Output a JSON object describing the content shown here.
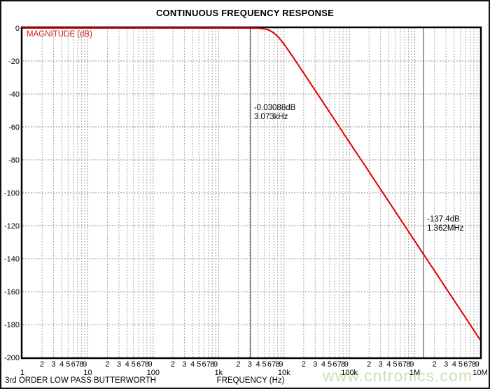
{
  "title": "CONTINUOUS FREQUENCY RESPONSE",
  "footer_left": "3rd ORDER LOW PASS BUTTERWORTH",
  "watermark": "www.cntronics.com",
  "chart_data": {
    "type": "line",
    "title": "CONTINUOUS FREQUENCY RESPONSE",
    "xlabel": "FREQUENCY (Hz)",
    "ylabel": "MAGNITUDE (dB)",
    "x_scale": "log",
    "xlim": [
      1,
      10000000
    ],
    "ylim": [
      -200,
      0
    ],
    "grid": "dashed, vertical minor log lines + horizontal lines every 20 dB",
    "x_decade_labels": [
      "1",
      "10",
      "100",
      "1k",
      "10k",
      "100k",
      "1M",
      "10M"
    ],
    "x_minor_digits": [
      "2",
      "3",
      "4",
      "5",
      "6",
      "7",
      "8",
      "9"
    ],
    "y_ticks": [
      0,
      -20,
      -40,
      -60,
      -80,
      -100,
      -120,
      -140,
      -160,
      -180,
      -200
    ],
    "filter": {
      "description": "3rd order low pass Butterworth",
      "order": 3,
      "cutoff_hz": 7005,
      "slope_db_per_decade": -60
    },
    "series": [
      {
        "name": "MAGNITUDE (dB)",
        "color": "#dd0000",
        "points": [
          [
            1,
            0
          ],
          [
            10,
            0
          ],
          [
            100,
            0
          ],
          [
            300,
            0
          ],
          [
            1000,
            -4e-05
          ],
          [
            1500,
            -0.0004
          ],
          [
            2000,
            -0.0024
          ],
          [
            2500,
            -0.009
          ],
          [
            3000,
            -0.0267
          ],
          [
            3073,
            -0.0309
          ],
          [
            3500,
            -0.0669
          ],
          [
            4000,
            -0.148
          ],
          [
            4500,
            -0.296
          ],
          [
            5000,
            -0.54
          ],
          [
            5500,
            -0.91
          ],
          [
            6000,
            -1.45
          ],
          [
            6500,
            -2.15
          ],
          [
            7005,
            -3.01
          ],
          [
            7500,
            -3.98
          ],
          [
            8000,
            -5.08
          ],
          [
            9000,
            -7.41
          ],
          [
            10000,
            -9.76
          ],
          [
            12000,
            -14.2
          ],
          [
            15000,
            -19.9
          ],
          [
            20000,
            -27.3
          ],
          [
            30000,
            -37.9
          ],
          [
            50000,
            -51.2
          ],
          [
            70000,
            -60.0
          ],
          [
            100000,
            -69.3
          ],
          [
            150000,
            -79.8
          ],
          [
            200000,
            -87.3
          ],
          [
            300000,
            -97.9
          ],
          [
            500000,
            -111.2
          ],
          [
            700000,
            -120.0
          ],
          [
            1000000,
            -129.3
          ],
          [
            1362000,
            -137.4
          ],
          [
            2000000,
            -147.3
          ],
          [
            3000000,
            -157.9
          ],
          [
            5000000,
            -171.2
          ],
          [
            7000000,
            -180.0
          ],
          [
            10000000,
            -189.3
          ]
        ]
      }
    ],
    "cursors": [
      {
        "freq_hz": 3073,
        "db_label": "-0.03088dB",
        "freq_label": "3.073kHz"
      },
      {
        "freq_hz": 1362000,
        "db_label": "-137.4dB",
        "freq_label": "1.362MHz"
      }
    ],
    "colors": {
      "curve": "#dd0000",
      "grid_minor": "#a6a6a6",
      "grid_major": "#8f8f8f",
      "cursor": "#3c3c3c",
      "frame": "#000000",
      "text": "#000000",
      "magnitude_label": "#d42020",
      "watermark": "#c5e3b4"
    }
  }
}
